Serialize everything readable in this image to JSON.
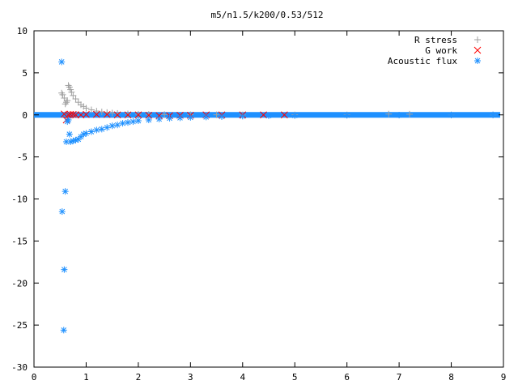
{
  "chart_data": {
    "type": "scatter",
    "title": "m5/n1.5/k200/0.53/512",
    "xlabel": "",
    "ylabel": "",
    "xlim": [
      0,
      9
    ],
    "ylim": [
      -30,
      10
    ],
    "xticks": [
      0,
      1,
      2,
      3,
      4,
      5,
      6,
      7,
      8,
      9
    ],
    "yticks": [
      -30,
      -25,
      -20,
      -15,
      -10,
      -5,
      0,
      5,
      10
    ],
    "grid": false,
    "legend": "top-right",
    "series": [
      {
        "name": "R stress",
        "marker": "plus",
        "color": "#a0a0a0",
        "x": [
          0.53,
          0.55,
          0.58,
          0.6,
          0.62,
          0.64,
          0.66,
          0.68,
          0.7,
          0.72,
          0.75,
          0.8,
          0.85,
          0.9,
          0.95,
          1.0,
          1.1,
          1.2,
          1.3,
          1.4,
          1.5,
          1.6,
          1.8,
          2.0,
          2.2,
          2.5,
          3.0,
          3.5,
          4.0,
          5.0,
          6.0,
          6.8,
          7.2,
          8.0,
          8.8
        ],
        "y": [
          2.6,
          2.4,
          2.0,
          1.3,
          1.5,
          1.7,
          3.5,
          3.3,
          3.0,
          2.7,
          2.3,
          1.9,
          1.5,
          1.2,
          1.0,
          0.8,
          0.6,
          0.45,
          0.35,
          0.28,
          0.22,
          0.18,
          0.12,
          0.08,
          0.06,
          0.04,
          0.02,
          0.01,
          0.0,
          0.0,
          0.0,
          0.1,
          0.08,
          0.0,
          0.0
        ]
      },
      {
        "name": "G work",
        "marker": "cross",
        "color": "#ff0000",
        "x": [
          0.58,
          0.62,
          0.66,
          0.7,
          0.75,
          0.8,
          0.9,
          1.0,
          1.2,
          1.4,
          1.6,
          1.8,
          2.0,
          2.2,
          2.4,
          2.6,
          2.8,
          3.0,
          3.3,
          3.6,
          4.0,
          4.4,
          4.8
        ],
        "y": [
          0.1,
          -0.6,
          0.0,
          0.05,
          0.05,
          0.0,
          0.0,
          0.05,
          0.05,
          0.05,
          0.0,
          0.0,
          0.0,
          -0.05,
          -0.1,
          -0.1,
          -0.05,
          -0.05,
          0.0,
          0.0,
          0.0,
          0.0,
          0.0
        ]
      },
      {
        "name": "Acoustic flux",
        "marker": "star",
        "color": "#1e90ff",
        "x": [
          0.53,
          0.54,
          0.57,
          0.58,
          0.6,
          0.62,
          0.64,
          0.66,
          0.68,
          0.7,
          0.75,
          0.8,
          0.85,
          0.9,
          0.95,
          1.0,
          1.1,
          1.2,
          1.3,
          1.4,
          1.5,
          1.6,
          1.7,
          1.8,
          1.9,
          2.0,
          2.2,
          2.4,
          2.6,
          2.8,
          3.0,
          3.3,
          3.6,
          4.0,
          4.5,
          5.0,
          6.0,
          7.0,
          8.0,
          8.8
        ],
        "y": [
          6.3,
          -11.5,
          -25.6,
          -18.4,
          -9.1,
          -3.2,
          -0.8,
          -0.6,
          -2.3,
          -3.2,
          -3.1,
          -3.0,
          -2.9,
          -2.6,
          -2.3,
          -2.2,
          -2.0,
          -1.8,
          -1.7,
          -1.5,
          -1.3,
          -1.2,
          -1.0,
          -0.9,
          -0.8,
          -0.7,
          -0.6,
          -0.5,
          -0.4,
          -0.35,
          -0.3,
          -0.25,
          -0.2,
          -0.15,
          -0.1,
          -0.08,
          -0.05,
          -0.03,
          -0.01,
          0.0
        ]
      }
    ]
  }
}
